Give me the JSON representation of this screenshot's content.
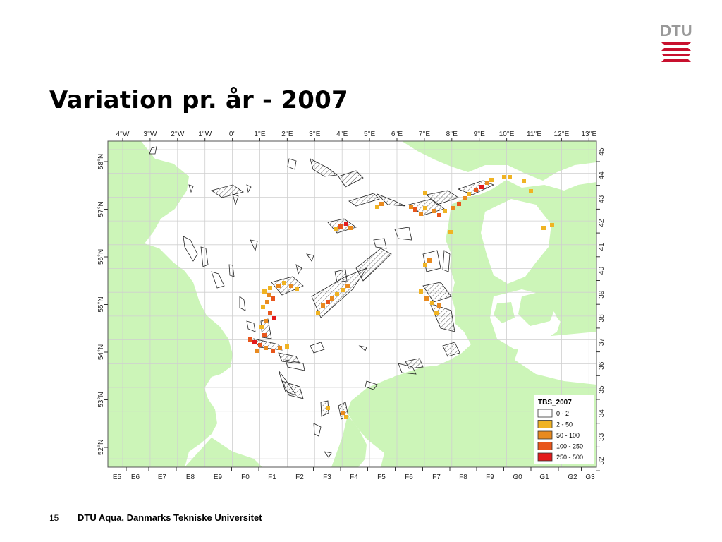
{
  "brand": {
    "name": "DTU",
    "accent": "#c8102e"
  },
  "slide": {
    "title": "Variation pr. år - 2007",
    "page_number": "15",
    "footer": "DTU Aqua, Danmarks Tekniske Universitet"
  },
  "map": {
    "colors": {
      "land": "#ccf5b8",
      "sea": "#ffffff",
      "grid": "#cfcfcf",
      "frame": "#555555"
    },
    "lon_labels": [
      "4°W",
      "3°W",
      "2°W",
      "1°W",
      "0°",
      "1°E",
      "2°E",
      "3°E",
      "4°E",
      "5°E",
      "6°E",
      "7°E",
      "8°E",
      "9°E",
      "10°E",
      "11°E",
      "12°E",
      "13°E"
    ],
    "lat_labels": [
      "58°N",
      "57°N",
      "56°N",
      "55°N",
      "54°N",
      "53°N",
      "52°N"
    ],
    "ices_columns": [
      "E5",
      "E6",
      "E7",
      "E8",
      "E9",
      "F0",
      "F1",
      "F2",
      "F3",
      "F4",
      "F5",
      "F6",
      "F7",
      "F8",
      "F9",
      "G0",
      "G1",
      "G2",
      "G3"
    ],
    "ices_rows": [
      "45",
      "44",
      "43",
      "42",
      "41",
      "40",
      "39",
      "38",
      "37",
      "36",
      "35",
      "34",
      "33",
      "32"
    ]
  },
  "legend": {
    "title": "TBS_2007",
    "items": [
      {
        "label": "0 - 2",
        "color": "#ffffff"
      },
      {
        "label": "2 - 50",
        "color": "#f0b323"
      },
      {
        "label": "50 - 100",
        "color": "#e98a1f"
      },
      {
        "label": "100 - 250",
        "color": "#e8561c"
      },
      {
        "label": "250 - 500",
        "color": "#e31a1c"
      }
    ]
  }
}
